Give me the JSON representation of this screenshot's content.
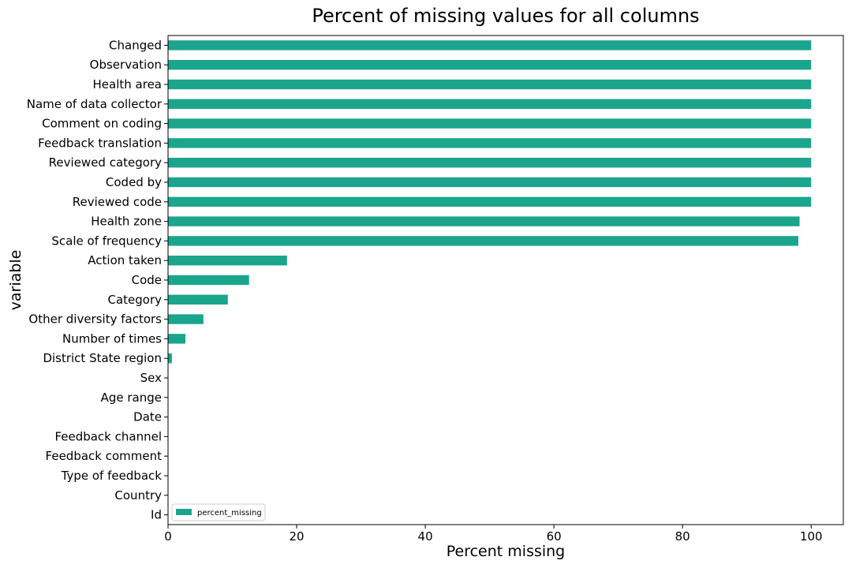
{
  "chart_data": {
    "type": "bar",
    "orientation": "horizontal",
    "title": "Percent of missing values for all columns",
    "xlabel": "Percent missing",
    "ylabel": "variable",
    "xlim": [
      0,
      105
    ],
    "xticks": [
      0,
      20,
      40,
      60,
      80,
      100
    ],
    "grid": false,
    "legend": {
      "position": "bottom-left",
      "entries": [
        "percent_missing"
      ]
    },
    "bar_color": "#1aa58c",
    "categories": [
      "Changed",
      "Observation",
      "Health area",
      "Name of data collector",
      "Comment on coding",
      "Feedback translation",
      "Reviewed category",
      "Coded by",
      "Reviewed code",
      "Health zone",
      "Scale of frequency",
      "Action taken",
      "Code",
      "Category",
      "Other diversity factors",
      "Number of times",
      "District State region",
      "Sex",
      "Age range",
      "Date",
      "Feedback channel",
      "Feedback comment",
      "Type of feedback",
      "Country",
      "Id"
    ],
    "series": [
      {
        "name": "percent_missing",
        "values": [
          100,
          100,
          100,
          100,
          100,
          100,
          100,
          100,
          100,
          98.2,
          98.0,
          18.5,
          12.6,
          9.3,
          5.5,
          2.7,
          0.6,
          0,
          0,
          0,
          0,
          0,
          0,
          0,
          0
        ]
      }
    ]
  }
}
